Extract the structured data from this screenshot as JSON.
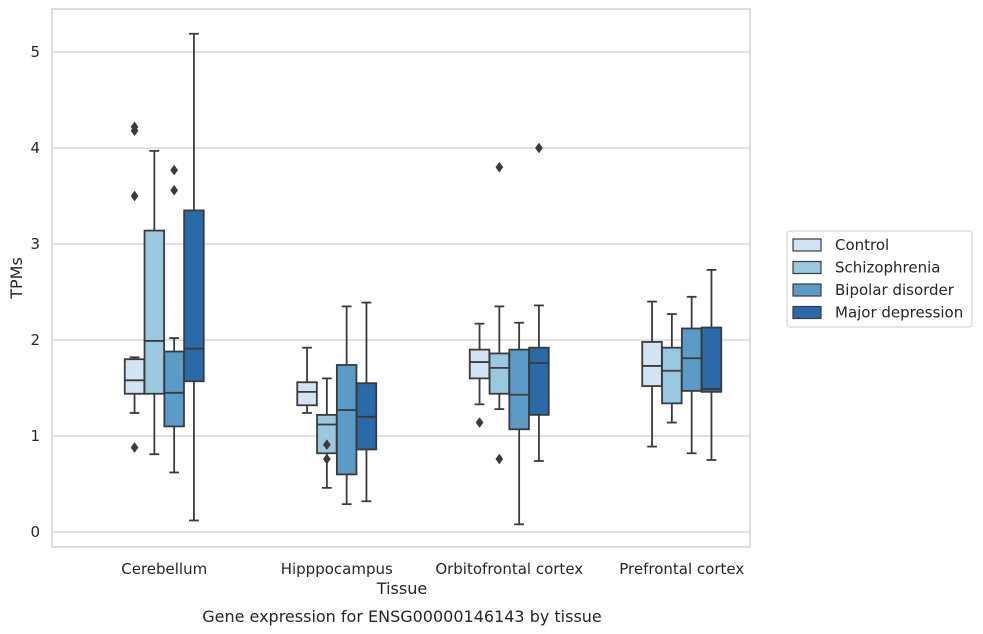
{
  "chart_data": {
    "type": "box",
    "xlabel": "Tissue",
    "ylabel": "TPMs",
    "caption": "Gene expression for ENSG00000146143 by tissue",
    "ylim": [
      -0.15,
      5.45
    ],
    "yticks": [
      "0",
      "1",
      "2",
      "3",
      "4",
      "5"
    ],
    "grid": "horizontal",
    "legend_position": "right",
    "categories": [
      "Cerebellum",
      "Hipppocampus",
      "Orbitofrontal cortex",
      "Prefrontal cortex"
    ],
    "series": [
      {
        "name": "Control",
        "color": "#d2e3f3",
        "boxes": [
          {
            "whisker_low": 1.24,
            "q1": 1.44,
            "median": 1.58,
            "q3": 1.8,
            "whisker_high": 1.82,
            "outliers": [
              0.88,
              3.5,
              4.18,
              4.22
            ]
          },
          {
            "whisker_low": 1.24,
            "q1": 1.32,
            "median": 1.46,
            "q3": 1.56,
            "whisker_high": 1.92,
            "outliers": []
          },
          {
            "whisker_low": 1.33,
            "q1": 1.6,
            "median": 1.77,
            "q3": 1.9,
            "whisker_high": 2.17,
            "outliers": [
              1.14
            ]
          },
          {
            "whisker_low": 0.89,
            "q1": 1.52,
            "median": 1.73,
            "q3": 1.98,
            "whisker_high": 2.4,
            "outliers": []
          }
        ]
      },
      {
        "name": "Schizophrenia",
        "color": "#9ac8e0",
        "boxes": [
          {
            "whisker_low": 0.81,
            "q1": 1.44,
            "median": 1.99,
            "q3": 3.14,
            "whisker_high": 3.97,
            "outliers": []
          },
          {
            "whisker_low": 0.46,
            "q1": 0.82,
            "median": 1.12,
            "q3": 1.22,
            "whisker_high": 1.6,
            "outliers": [
              0.76,
              0.91
            ]
          },
          {
            "whisker_low": 1.28,
            "q1": 1.44,
            "median": 1.71,
            "q3": 1.86,
            "whisker_high": 2.35,
            "outliers": [
              0.76,
              3.8
            ]
          },
          {
            "whisker_low": 1.14,
            "q1": 1.34,
            "median": 1.68,
            "q3": 1.92,
            "whisker_high": 2.27,
            "outliers": []
          }
        ]
      },
      {
        "name": "Bipolar disorder",
        "color": "#5a9bc8",
        "boxes": [
          {
            "whisker_low": 0.62,
            "q1": 1.1,
            "median": 1.45,
            "q3": 1.88,
            "whisker_high": 2.02,
            "outliers": [
              3.56,
              3.77
            ]
          },
          {
            "whisker_low": 0.29,
            "q1": 0.6,
            "median": 1.27,
            "q3": 1.74,
            "whisker_high": 2.35,
            "outliers": []
          },
          {
            "whisker_low": 0.08,
            "q1": 1.07,
            "median": 1.43,
            "q3": 1.9,
            "whisker_high": 2.18,
            "outliers": []
          },
          {
            "whisker_low": 0.82,
            "q1": 1.47,
            "median": 1.81,
            "q3": 2.12,
            "whisker_high": 2.45,
            "outliers": []
          }
        ]
      },
      {
        "name": "Major depression",
        "color": "#2a6aa8",
        "boxes": [
          {
            "whisker_low": 0.12,
            "q1": 1.57,
            "median": 1.91,
            "q3": 3.35,
            "whisker_high": 5.19,
            "outliers": []
          },
          {
            "whisker_low": 0.32,
            "q1": 0.86,
            "median": 1.2,
            "q3": 1.55,
            "whisker_high": 2.39,
            "outliers": []
          },
          {
            "whisker_low": 0.74,
            "q1": 1.22,
            "median": 1.76,
            "q3": 1.92,
            "whisker_high": 2.36,
            "outliers": [
              4.0
            ]
          },
          {
            "whisker_low": 0.75,
            "q1": 1.46,
            "median": 1.49,
            "q3": 2.13,
            "whisker_high": 2.73,
            "outliers": []
          }
        ]
      }
    ]
  }
}
